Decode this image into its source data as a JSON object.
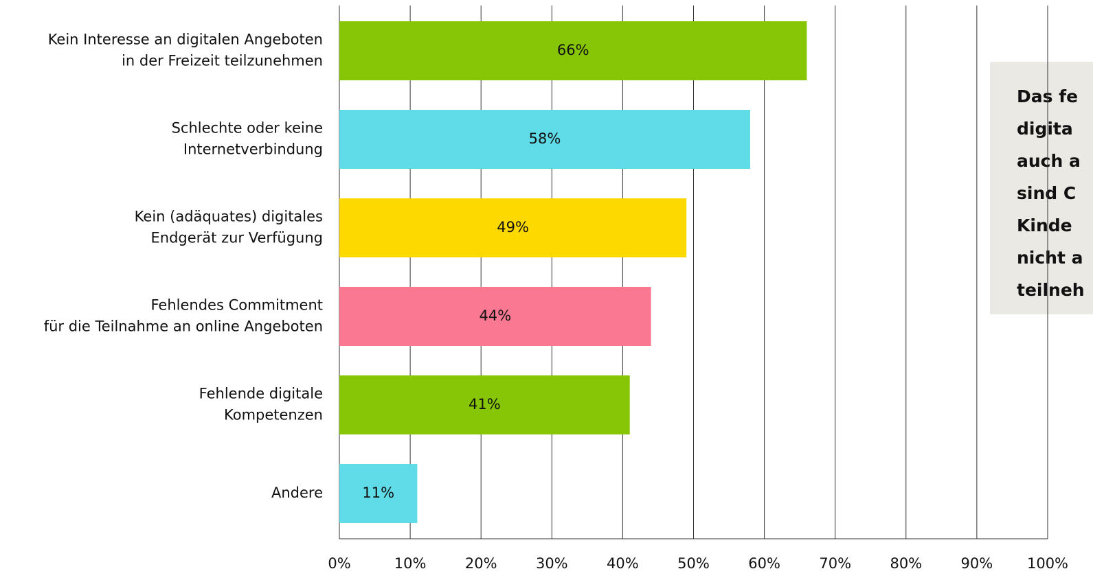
{
  "chart_data": {
    "type": "bar",
    "orientation": "horizontal",
    "categories": [
      [
        "Kein Interesse an digitalen Angeboten",
        "in der Freizeit teilzunehmen"
      ],
      [
        "Schlechte oder keine",
        "Internetverbindung"
      ],
      [
        "Kein (adäquates) digitales",
        "Endgerät zur Verfügung"
      ],
      [
        "Fehlendes Commitment",
        "für die Teilnahme an online Angeboten"
      ],
      [
        "Fehlende digitale",
        "Kompetenzen"
      ],
      [
        "Andere"
      ]
    ],
    "values": [
      66,
      58,
      49,
      44,
      41,
      11
    ],
    "value_labels": [
      "66%",
      "58%",
      "49%",
      "44%",
      "41%",
      "11%"
    ],
    "colors": [
      "#86c606",
      "#60dbe8",
      "#fdd900",
      "#fb7893",
      "#86c606",
      "#60dbe8"
    ],
    "xlim": [
      0,
      100
    ],
    "xticks": [
      {
        "value": 0,
        "label": "0%"
      },
      {
        "value": 10,
        "label": "10%"
      },
      {
        "value": 20,
        "label": "20%"
      },
      {
        "value": 30,
        "label": "30%"
      },
      {
        "value": 40,
        "label": "40%"
      },
      {
        "value": 50,
        "label": "50%"
      },
      {
        "value": 60,
        "label": "60%"
      },
      {
        "value": 70,
        "label": "70%"
      },
      {
        "value": 80,
        "label": "80%"
      },
      {
        "value": 90,
        "label": "90%"
      },
      {
        "value": 100,
        "label": "100%"
      }
    ],
    "grid": true,
    "annotation": [
      "Das fe",
      "digita",
      "auch a",
      "sind C",
      "Kinde",
      "nicht a",
      "teilneh"
    ]
  }
}
